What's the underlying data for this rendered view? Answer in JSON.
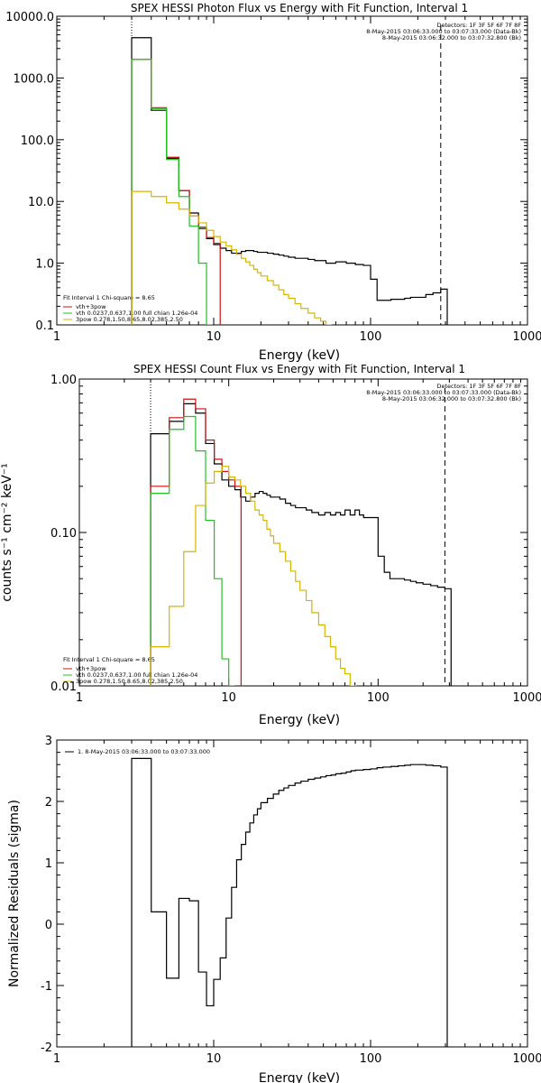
{
  "chart_data": [
    {
      "type": "line",
      "title": "SPEX HESSI Photon Flux vs Energy with Fit Function, Interval 1",
      "xlabel": "Energy (keV)",
      "ylabel": "",
      "xscale": "log",
      "yscale": "log",
      "xlim": [
        1,
        1000
      ],
      "ylim": [
        0.1,
        10000
      ],
      "x_ticks": [
        "1",
        "10",
        "100",
        "1000"
      ],
      "y_ticks": [
        "0.1",
        "1.0",
        "10.0",
        "100.0",
        "1000.0",
        "10000.0"
      ],
      "vlines": {
        "dotted": 3,
        "dashed": 280
      },
      "header_lines": [
        "Detectors: 1F 3F 5F 6F 7F 8F",
        "8-May-2015 03:06:33.000 to 03:07:33.000 (Data-Bk)",
        "8-May-2015 03:06:32.000 to 03:07:32.800 (Bk)"
      ],
      "fit_text": {
        "interval_line": "Fit Interval 1     Chi-square = 8.65",
        "legend": [
          {
            "name": "vth+3pow",
            "color": "#d01010"
          },
          {
            "name": "vth 0.0237,0.637,1.00  full chian 1.26e-04",
            "color": "#22c022"
          },
          {
            "name": "3pow 0.278,1.50,8.65,8.02,385,2.50",
            "color": "#d8b400"
          }
        ]
      },
      "series": [
        {
          "name": "Data-Bk",
          "color": "#000000",
          "x": [
            3,
            4,
            5,
            6,
            7,
            8,
            9,
            10,
            11,
            12,
            13,
            14,
            15,
            16,
            17,
            18,
            19,
            20,
            22,
            24,
            26,
            28,
            30,
            33,
            36,
            40,
            44,
            48,
            52,
            56,
            60,
            65,
            70,
            75,
            80,
            90,
            100,
            110,
            120,
            135,
            150,
            165,
            180,
            200,
            225,
            250,
            280
          ],
          "y": [
            4500,
            300,
            50,
            15,
            6.5,
            3.8,
            2.5,
            2.0,
            1.75,
            1.6,
            1.45,
            1.45,
            1.55,
            1.6,
            1.6,
            1.55,
            1.5,
            1.5,
            1.45,
            1.4,
            1.35,
            1.3,
            1.25,
            1.2,
            1.2,
            1.15,
            1.1,
            1.1,
            1.0,
            1.0,
            1.05,
            1.05,
            1.0,
            1.0,
            0.95,
            0.92,
            0.55,
            0.25,
            0.25,
            0.26,
            0.26,
            0.27,
            0.28,
            0.28,
            0.31,
            0.33,
            0.38
          ]
        },
        {
          "name": "vth+3pow",
          "color": "#d01010",
          "x": [
            3,
            4,
            5,
            6,
            7,
            8,
            9,
            10
          ],
          "y": [
            2000,
            330,
            52,
            15,
            5.8,
            3.6,
            2.6,
            2.1
          ]
        },
        {
          "name": "vth",
          "color": "#22c022",
          "x": [
            3,
            4,
            5,
            6,
            7,
            8,
            9
          ],
          "y": [
            2000,
            320,
            48,
            12,
            4.0,
            1.0,
            0.1
          ]
        },
        {
          "name": "3pow",
          "color": "#d8b400",
          "x": [
            3,
            4,
            5,
            6,
            7,
            8,
            9,
            10,
            11,
            12,
            13,
            14,
            15,
            16,
            17,
            18,
            19,
            20,
            22,
            24,
            26,
            28,
            30,
            33,
            36,
            40,
            44,
            48,
            52,
            56,
            60
          ],
          "y": [
            14.5,
            12.0,
            9.5,
            7.5,
            5.8,
            4.5,
            3.4,
            2.7,
            2.2,
            1.9,
            1.65,
            1.4,
            1.2,
            1.05,
            0.92,
            0.8,
            0.7,
            0.62,
            0.52,
            0.44,
            0.37,
            0.31,
            0.27,
            0.22,
            0.185,
            0.155,
            0.13,
            0.115,
            0.1,
            0.09,
            0.08
          ]
        }
      ]
    },
    {
      "type": "line",
      "title": "SPEX HESSI Count Flux vs Energy with Fit Function, Interval 1",
      "xlabel": "Energy (keV)",
      "ylabel": "counts s⁻¹ cm⁻² keV⁻¹",
      "xscale": "log",
      "yscale": "log",
      "xlim": [
        1,
        1000
      ],
      "ylim": [
        0.01,
        1.0
      ],
      "x_ticks": [
        "1",
        "10",
        "100",
        "1000"
      ],
      "y_ticks": [
        "0.01",
        "0.10",
        "1.00"
      ],
      "vlines": {
        "dotted": 3,
        "dashed": 280
      },
      "header_lines": [
        "Detectors: 1F 3F 5F 6F 7F 8F",
        "8-May-2015 03:06:33.000 to 03:07:33.000 (Data-Bk)",
        "8-May-2015 03:06:32.000 to 03:07:32.800 (Bk)"
      ],
      "fit_text": {
        "interval_line": "Fit Interval 1     Chi-square = 8.65",
        "legend": [
          {
            "name": "vth+3pow",
            "color": "#d01010"
          },
          {
            "name": "vth 0.0237,0.637,1.00  full chian 1.26e-04",
            "color": "#22c022"
          },
          {
            "name": "3pow 0.278,1.50,8.65,8.02,385,2.50",
            "color": "#d8b400"
          }
        ]
      },
      "series": [
        {
          "name": "Data-Bk",
          "color": "#000000",
          "x": [
            3,
            4,
            5,
            6,
            7,
            8,
            9,
            10,
            11,
            12,
            13,
            14,
            15,
            16,
            17,
            18,
            19,
            20,
            22,
            24,
            26,
            28,
            30,
            33,
            36,
            40,
            44,
            48,
            52,
            56,
            60,
            65,
            70,
            75,
            80,
            90,
            100,
            110,
            120,
            135,
            150,
            165,
            180,
            200,
            225,
            250,
            280
          ],
          "y": [
            0.44,
            0.53,
            0.69,
            0.6,
            0.38,
            0.28,
            0.22,
            0.2,
            0.19,
            0.17,
            0.16,
            0.17,
            0.18,
            0.185,
            0.18,
            0.175,
            0.17,
            0.17,
            0.165,
            0.155,
            0.15,
            0.145,
            0.145,
            0.14,
            0.135,
            0.13,
            0.135,
            0.13,
            0.135,
            0.13,
            0.14,
            0.13,
            0.14,
            0.13,
            0.125,
            0.125,
            0.07,
            0.055,
            0.05,
            0.05,
            0.049,
            0.048,
            0.047,
            0.046,
            0.045,
            0.044,
            0.043
          ]
        },
        {
          "name": "vth+3pow",
          "color": "#d01010",
          "x": [
            3,
            4,
            5,
            6,
            7,
            8,
            9,
            10,
            11
          ],
          "y": [
            0.2,
            0.56,
            0.74,
            0.64,
            0.4,
            0.3,
            0.25,
            0.22,
            0.2
          ]
        },
        {
          "name": "vth",
          "color": "#22c022",
          "x": [
            3,
            4,
            5,
            6,
            7,
            8,
            9,
            10
          ],
          "y": [
            0.18,
            0.47,
            0.57,
            0.34,
            0.12,
            0.05,
            0.015,
            0.01
          ]
        },
        {
          "name": "3pow",
          "color": "#d8b400",
          "x": [
            3,
            4,
            5,
            6,
            7,
            8,
            9,
            10,
            11,
            12,
            13,
            14,
            15,
            16,
            17,
            18,
            19,
            20,
            22,
            24,
            26,
            28,
            30,
            33,
            36,
            40,
            44,
            48,
            52,
            56,
            60,
            65
          ],
          "y": [
            0.018,
            0.033,
            0.075,
            0.15,
            0.21,
            0.25,
            0.27,
            0.23,
            0.22,
            0.2,
            0.18,
            0.16,
            0.14,
            0.13,
            0.12,
            0.105,
            0.095,
            0.085,
            0.075,
            0.065,
            0.056,
            0.048,
            0.042,
            0.036,
            0.03,
            0.025,
            0.021,
            0.018,
            0.015,
            0.013,
            0.012,
            0.01
          ]
        }
      ]
    },
    {
      "type": "line",
      "title": "",
      "xlabel": "Energy (keV)",
      "ylabel": "Normalized Residuals (sigma)",
      "xscale": "log",
      "yscale": "linear",
      "xlim": [
        1,
        1000
      ],
      "ylim": [
        -2,
        3
      ],
      "x_ticks": [
        "1",
        "10",
        "100",
        "1000"
      ],
      "y_ticks": [
        "-2",
        "-1",
        "0",
        "1",
        "2",
        "3"
      ],
      "legend": [
        {
          "name": "1.  8-May-2015 03:06:33.000 to 03:07:33.000",
          "color": "#000000"
        }
      ],
      "series": [
        {
          "name": "1.  8-May-2015 03:06:33.000 to 03:07:33.000",
          "color": "#000000",
          "x": [
            3,
            4,
            5,
            6,
            7,
            8,
            9,
            10,
            11,
            12,
            13,
            14,
            15,
            16,
            17,
            18,
            19,
            20,
            22,
            24,
            26,
            28,
            30,
            33,
            36,
            40,
            44,
            48,
            52,
            56,
            60,
            65,
            70,
            75,
            80,
            90,
            100,
            110,
            120,
            135,
            150,
            165,
            180,
            200,
            225,
            250,
            280
          ],
          "y": [
            2.7,
            0.2,
            -0.88,
            0.42,
            0.38,
            -0.78,
            -1.33,
            -0.9,
            -0.55,
            0.1,
            0.6,
            1.05,
            1.3,
            1.5,
            1.65,
            1.78,
            1.88,
            1.98,
            2.05,
            2.12,
            2.18,
            2.22,
            2.26,
            2.3,
            2.33,
            2.36,
            2.38,
            2.4,
            2.42,
            2.43,
            2.45,
            2.46,
            2.48,
            2.5,
            2.51,
            2.52,
            2.53,
            2.55,
            2.56,
            2.57,
            2.58,
            2.59,
            2.6,
            2.6,
            2.59,
            2.58,
            2.56
          ]
        }
      ]
    }
  ]
}
